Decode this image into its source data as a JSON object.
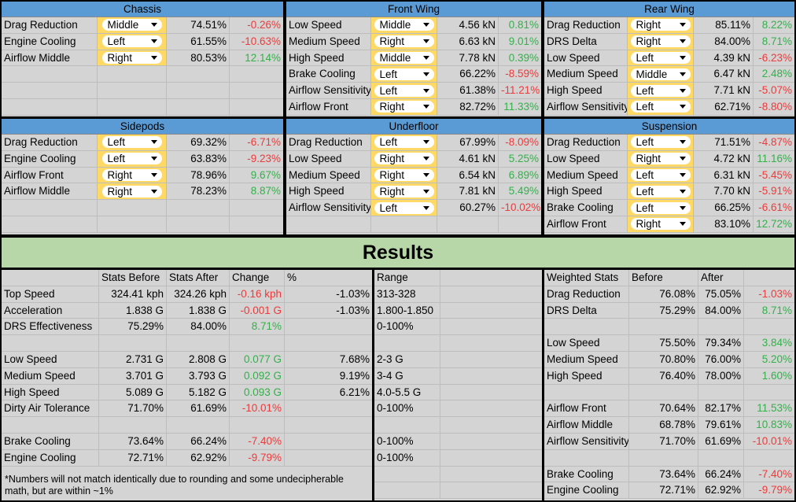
{
  "part_sections": [
    {
      "title": "Chassis",
      "rows": [
        {
          "name": "Drag Reduction",
          "choice": "Middle",
          "value": "74.51%",
          "change": "-0.26%",
          "dir": "neg"
        },
        {
          "name": "Engine Cooling",
          "choice": "Left",
          "value": "61.55%",
          "change": "-10.63%",
          "dir": "neg"
        },
        {
          "name": "Airflow Middle",
          "choice": "Right",
          "value": "80.53%",
          "change": "12.14%",
          "dir": "pos"
        }
      ]
    },
    {
      "title": "Front Wing",
      "rows": [
        {
          "name": "Low Speed",
          "choice": "Middle",
          "value": "4.56 kN",
          "change": "0.81%",
          "dir": "pos"
        },
        {
          "name": "Medium Speed",
          "choice": "Right",
          "value": "6.63 kN",
          "change": "9.01%",
          "dir": "pos"
        },
        {
          "name": "High Speed",
          "choice": "Middle",
          "value": "7.78 kN",
          "change": "0.39%",
          "dir": "pos"
        },
        {
          "name": "Brake Cooling",
          "choice": "Left",
          "value": "66.22%",
          "change": "-8.59%",
          "dir": "neg"
        },
        {
          "name": "Airflow Sensitivity",
          "choice": "Left",
          "value": "61.38%",
          "change": "-11.21%",
          "dir": "neg"
        },
        {
          "name": "Airflow Front",
          "choice": "Right",
          "value": "82.72%",
          "change": "11.33%",
          "dir": "pos"
        }
      ]
    },
    {
      "title": "Rear Wing",
      "rows": [
        {
          "name": "Drag Reduction",
          "choice": "Right",
          "value": "85.11%",
          "change": "8.22%",
          "dir": "pos"
        },
        {
          "name": "DRS Delta",
          "choice": "Right",
          "value": "84.00%",
          "change": "8.71%",
          "dir": "pos"
        },
        {
          "name": "Low Speed",
          "choice": "Left",
          "value": "4.39 kN",
          "change": "-6.23%",
          "dir": "neg"
        },
        {
          "name": "Medium Speed",
          "choice": "Middle",
          "value": "6.47 kN",
          "change": "2.48%",
          "dir": "pos"
        },
        {
          "name": "High Speed",
          "choice": "Left",
          "value": "7.71 kN",
          "change": "-5.07%",
          "dir": "neg"
        },
        {
          "name": "Airflow Sensitivity",
          "choice": "Left",
          "value": "62.71%",
          "change": "-8.80%",
          "dir": "neg"
        }
      ]
    },
    {
      "title": "Sidepods",
      "rows": [
        {
          "name": "Drag Reduction",
          "choice": "Left",
          "value": "69.32%",
          "change": "-6.71%",
          "dir": "neg"
        },
        {
          "name": "Engine Cooling",
          "choice": "Left",
          "value": "63.83%",
          "change": "-9.23%",
          "dir": "neg"
        },
        {
          "name": "Airflow Front",
          "choice": "Right",
          "value": "78.96%",
          "change": "9.67%",
          "dir": "pos"
        },
        {
          "name": "Airflow Middle",
          "choice": "Right",
          "value": "78.23%",
          "change": "8.87%",
          "dir": "pos"
        }
      ]
    },
    {
      "title": "Underfloor",
      "rows": [
        {
          "name": "Drag Reduction",
          "choice": "Left",
          "value": "67.99%",
          "change": "-8.09%",
          "dir": "neg"
        },
        {
          "name": "Low Speed",
          "choice": "Right",
          "value": "4.61 kN",
          "change": "5.25%",
          "dir": "pos"
        },
        {
          "name": "Medium Speed",
          "choice": "Right",
          "value": "6.54 kN",
          "change": "6.89%",
          "dir": "pos"
        },
        {
          "name": "High Speed",
          "choice": "Right",
          "value": "7.81 kN",
          "change": "5.49%",
          "dir": "pos"
        },
        {
          "name": "Airflow Sensitivity",
          "choice": "Left",
          "value": "60.27%",
          "change": "-10.02%",
          "dir": "neg"
        }
      ]
    },
    {
      "title": "Suspension",
      "rows": [
        {
          "name": "Drag Reduction",
          "choice": "Left",
          "value": "71.51%",
          "change": "-4.87%",
          "dir": "neg"
        },
        {
          "name": "Low Speed",
          "choice": "Right",
          "value": "4.72 kN",
          "change": "11.16%",
          "dir": "pos"
        },
        {
          "name": "Medium Speed",
          "choice": "Left",
          "value": "6.31 kN",
          "change": "-5.45%",
          "dir": "neg"
        },
        {
          "name": "High Speed",
          "choice": "Left",
          "value": "7.70 kN",
          "change": "-5.91%",
          "dir": "neg"
        },
        {
          "name": "Brake Cooling",
          "choice": "Left",
          "value": "66.25%",
          "change": "-6.61%",
          "dir": "neg"
        },
        {
          "name": "Airflow Front",
          "choice": "Right",
          "value": "83.10%",
          "change": "12.72%",
          "dir": "pos"
        }
      ]
    }
  ],
  "results": {
    "title": "Results",
    "headers": [
      "",
      "Stats Before",
      "Stats After",
      "Change",
      "%"
    ],
    "range_header": "Range",
    "rows": [
      {
        "name": "Top Speed",
        "before": "324.41 kph",
        "after": "324.26 kph",
        "change": "-0.16 kph",
        "dir": "neg",
        "pct": "-1.03%",
        "range": "313-328"
      },
      {
        "name": "Acceleration",
        "before": "1.838 G",
        "after": "1.838 G",
        "change": "-0.001 G",
        "dir": "neg",
        "pct": "-1.03%",
        "range": "1.800-1.850"
      },
      {
        "name": "DRS Effectiveness",
        "before": "75.29%",
        "after": "84.00%",
        "change": "8.71%",
        "dir": "pos",
        "pct": "",
        "range": "0-100%"
      },
      {
        "name": "",
        "before": "",
        "after": "",
        "change": "",
        "dir": "",
        "pct": "",
        "range": ""
      },
      {
        "name": "Low Speed",
        "before": "2.731 G",
        "after": "2.808 G",
        "change": "0.077 G",
        "dir": "pos",
        "pct": "7.68%",
        "range": "2-3 G"
      },
      {
        "name": "Medium Speed",
        "before": "3.701 G",
        "after": "3.793 G",
        "change": "0.092 G",
        "dir": "pos",
        "pct": "9.19%",
        "range": "3-4 G"
      },
      {
        "name": "High Speed",
        "before": "5.089 G",
        "after": "5.182 G",
        "change": "0.093 G",
        "dir": "pos",
        "pct": "6.21%",
        "range": "4.0-5.5 G"
      },
      {
        "name": "Dirty Air Tolerance",
        "before": "71.70%",
        "after": "61.69%",
        "change": "-10.01%",
        "dir": "neg",
        "pct": "",
        "range": "0-100%"
      },
      {
        "name": "",
        "before": "",
        "after": "",
        "change": "",
        "dir": "",
        "pct": "",
        "range": ""
      },
      {
        "name": "Brake Cooling",
        "before": "73.64%",
        "after": "66.24%",
        "change": "-7.40%",
        "dir": "neg",
        "pct": "",
        "range": "0-100%"
      },
      {
        "name": "Engine Cooling",
        "before": "72.71%",
        "after": "62.92%",
        "change": "-9.79%",
        "dir": "neg",
        "pct": "",
        "range": "0-100%"
      }
    ],
    "note": "*Numbers will not match identically due to rounding and some undecipherable math, but are within ~1%"
  },
  "weighted": {
    "headers": [
      "Weighted Stats",
      "Before",
      "After",
      ""
    ],
    "rows": [
      {
        "name": "Drag Reduction",
        "before": "76.08%",
        "after": "75.05%",
        "change": "-1.03%",
        "dir": "neg"
      },
      {
        "name": "DRS Delta",
        "before": "75.29%",
        "after": "84.00%",
        "change": "8.71%",
        "dir": "pos"
      },
      {
        "name": "",
        "before": "",
        "after": "",
        "change": "",
        "dir": ""
      },
      {
        "name": "Low Speed",
        "before": "75.50%",
        "after": "79.34%",
        "change": "3.84%",
        "dir": "pos"
      },
      {
        "name": "Medium Speed",
        "before": "70.80%",
        "after": "76.00%",
        "change": "5.20%",
        "dir": "pos"
      },
      {
        "name": "High Speed",
        "before": "76.40%",
        "after": "78.00%",
        "change": "1.60%",
        "dir": "pos"
      },
      {
        "name": "",
        "before": "",
        "after": "",
        "change": "",
        "dir": ""
      },
      {
        "name": "Airflow Front",
        "before": "70.64%",
        "after": "82.17%",
        "change": "11.53%",
        "dir": "pos"
      },
      {
        "name": "Airflow Middle",
        "before": "68.78%",
        "after": "79.61%",
        "change": "10.83%",
        "dir": "pos"
      },
      {
        "name": "Airflow Sensitivity",
        "before": "71.70%",
        "after": "61.69%",
        "change": "-10.01%",
        "dir": "neg"
      },
      {
        "name": "",
        "before": "",
        "after": "",
        "change": "",
        "dir": ""
      },
      {
        "name": "Brake Cooling",
        "before": "73.64%",
        "after": "66.24%",
        "change": "-7.40%",
        "dir": "neg"
      },
      {
        "name": "Engine Cooling",
        "before": "72.71%",
        "after": "62.92%",
        "change": "-9.79%",
        "dir": "neg"
      }
    ]
  }
}
